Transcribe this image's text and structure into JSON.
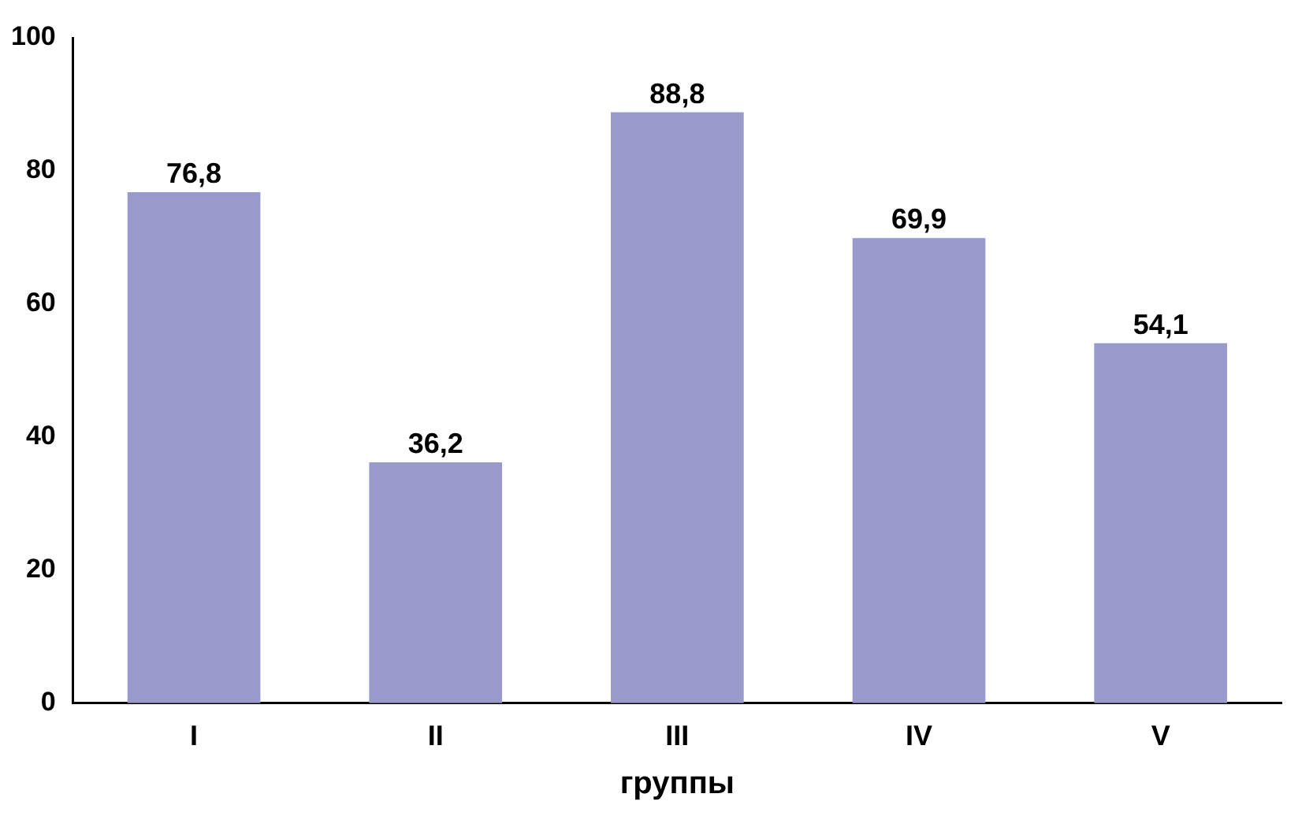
{
  "chart_data": {
    "type": "bar",
    "xlabel": "группы",
    "categories": [
      "I",
      "II",
      "III",
      "IV",
      "V"
    ],
    "values": [
      76.8,
      36.2,
      88.8,
      69.9,
      54.1
    ],
    "value_labels": [
      "76,8",
      "36,2",
      "88,8",
      "69,9",
      "54,1"
    ],
    "color": "#9999cc",
    "ylim": [
      0,
      100
    ],
    "yticks": [
      0,
      20,
      40,
      60,
      80,
      100
    ],
    "grid": false,
    "legend": false
  }
}
